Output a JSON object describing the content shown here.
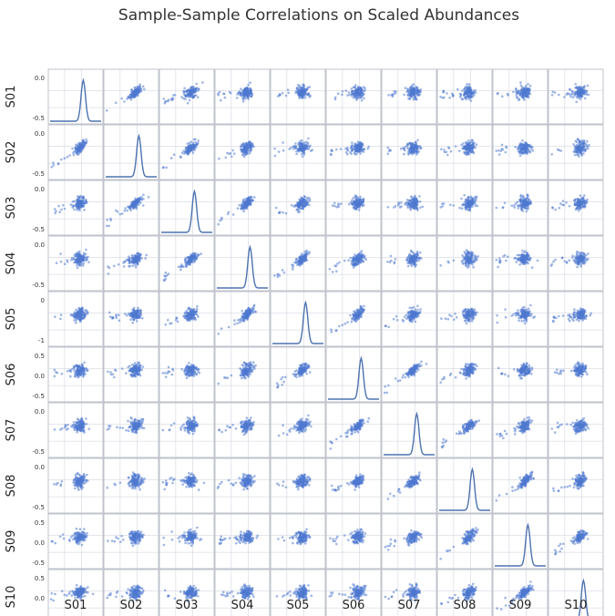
{
  "chart_data": {
    "type": "scatter",
    "title": "Sample-Sample Correlations on Scaled Abundances",
    "variables": [
      "S01",
      "S02",
      "S03",
      "S04",
      "S05",
      "S06",
      "S07",
      "S08",
      "S09",
      "S10"
    ],
    "diagonal": "kde",
    "axis_range": [
      -0.9,
      0.55
    ],
    "y_ticks": {
      "S01": [
        "0.0",
        "-0.5"
      ],
      "S02": [
        "0.0",
        "-0.5"
      ],
      "S03": [
        "0.0",
        "-0.5"
      ],
      "S04": [
        "0.0",
        "-0.5"
      ],
      "S05": [
        "0",
        "-1"
      ],
      "S06": [
        "0.5",
        "0.0",
        "-0.5"
      ],
      "S07": [
        "0.0",
        "-0.5"
      ],
      "S08": [
        "0.0",
        "-0.5"
      ],
      "S09": [
        "0.5",
        "0.0",
        "-0.5"
      ],
      "S10": [
        "0.5",
        "0.0",
        "-0.5"
      ]
    },
    "x_ticks": {
      "S01": [
        "-0.5",
        "0.0"
      ],
      "S02": [
        "-0.5",
        "0.0"
      ],
      "S03": [
        "-0.5",
        "0.0"
      ],
      "S04": [
        "-0.5",
        "0.0"
      ],
      "S05": [
        "-1",
        "0"
      ],
      "S06": [
        "-0.5",
        "0.0",
        "0.5"
      ],
      "S07": [
        "-0.5",
        "0.0"
      ],
      "S08": [
        "-0.5",
        "0.0"
      ],
      "S09": [
        "-0.5",
        "0.0"
      ],
      "S10": [
        "0.0",
        "0.5"
      ]
    },
    "grid": true,
    "colors": {
      "points": "#4e78cf",
      "kde": "#4c72b0",
      "grid": "#c8cdd8",
      "frame": "#b0b4c0"
    }
  }
}
